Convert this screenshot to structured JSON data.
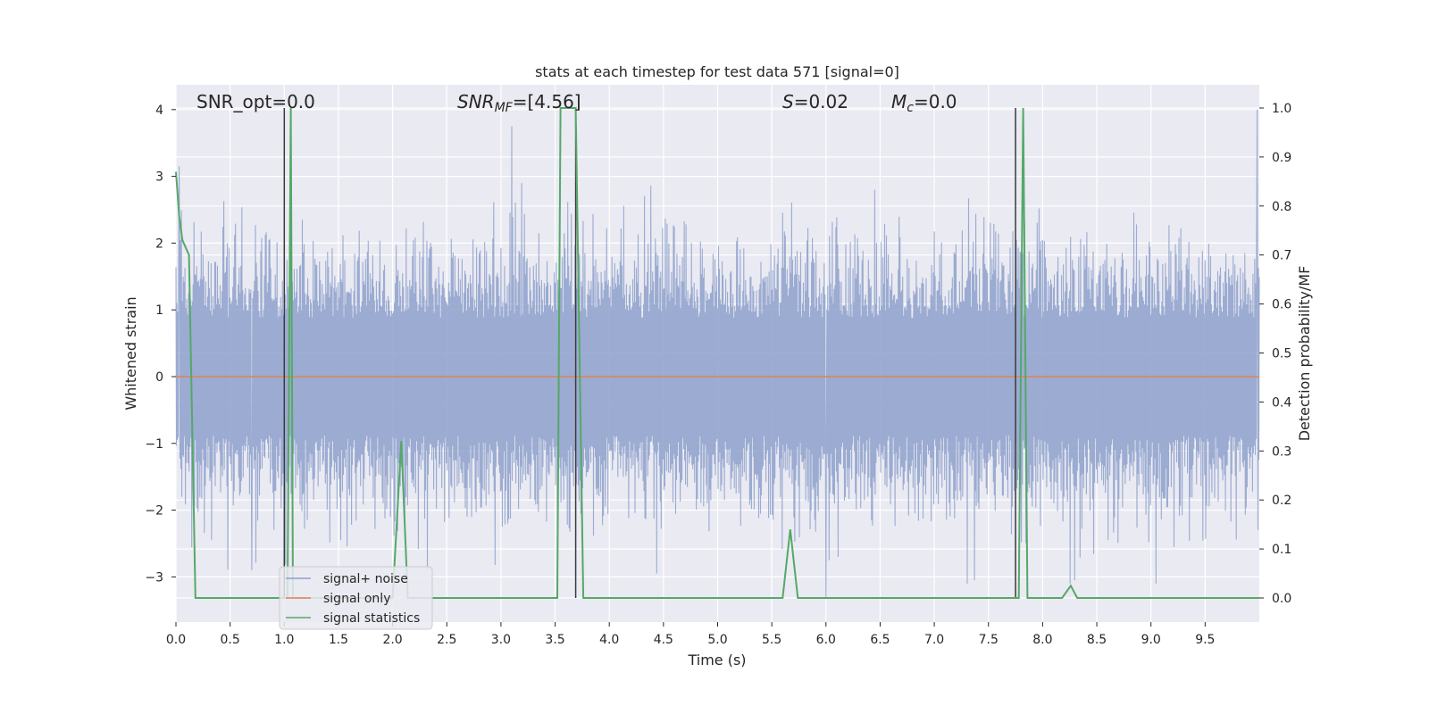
{
  "chart_data": {
    "type": "line",
    "title": "stats at each timestep for test data 571 [signal=0]",
    "xlabel": "Time (s)",
    "ylabel": "Whitened strain",
    "y2label": "Detection probability/MF",
    "xlim": [
      0,
      10
    ],
    "ylim": [
      -3.7,
      4.4
    ],
    "y2lim": [
      -0.047,
      1.047
    ],
    "xticks": [
      "0.0",
      "0.5",
      "1.0",
      "1.5",
      "2.0",
      "2.5",
      "3.0",
      "3.5",
      "4.0",
      "4.5",
      "5.0",
      "5.5",
      "6.0",
      "6.5",
      "7.0",
      "7.5",
      "8.0",
      "8.5",
      "9.0",
      "9.5"
    ],
    "yticks": [
      "4",
      "3",
      "2",
      "1",
      "0",
      "−1",
      "−2",
      "−3"
    ],
    "y2ticks": [
      "1.0",
      "0.9",
      "0.8",
      "0.7",
      "0.6",
      "0.5",
      "0.4",
      "0.3",
      "0.2",
      "0.1",
      "0.0"
    ],
    "grid": true,
    "legend_position": "lower-left",
    "annotations": {
      "snr_opt": "SNR_opt=0.0",
      "snr_mf_name": "SNR",
      "snr_mf_sub": "MF",
      "snr_mf_value": "=[4.56]",
      "s_name": "S",
      "s_value": "=0.02",
      "mc_name": "M",
      "mc_sub": "c",
      "mc_value": "=0.0"
    },
    "series": [
      {
        "name": "signal+ noise",
        "color": "#8da0cb",
        "amplitude_typical": 1.6,
        "notable_peaks": [
          [
            0.03,
            3.15
          ],
          [
            3.1,
            3.75
          ],
          [
            9.98,
            4.0
          ],
          [
            6.0,
            -3.3
          ],
          [
            0.7,
            -2.9
          ]
        ]
      },
      {
        "name": "signal only",
        "color": "#dd8452",
        "x": [
          0,
          10
        ],
        "y": [
          0,
          0
        ]
      },
      {
        "name": "signal statistics",
        "color": "#55a868",
        "axis": "right",
        "x": [
          0.0,
          0.03,
          0.06,
          0.12,
          0.18,
          0.98,
          1.0,
          1.03,
          1.06,
          1.08,
          1.1,
          1.12,
          2.0,
          2.08,
          2.14,
          3.49,
          3.52,
          3.55,
          3.69,
          3.76,
          5.6,
          5.67,
          5.74,
          7.74,
          7.78,
          7.82,
          7.86,
          8.18,
          8.26,
          8.32,
          10.0
        ],
        "y": [
          0.87,
          0.78,
          0.73,
          0.7,
          0.0,
          0.0,
          0.0,
          0.0,
          1.0,
          0.0,
          0.0,
          0.0,
          0.0,
          0.32,
          0.0,
          0.0,
          0.0,
          1.0,
          1.0,
          0.0,
          0.0,
          0.14,
          0.0,
          0.0,
          0.0,
          1.0,
          0.0,
          0.0,
          0.025,
          0.0,
          0.0
        ]
      },
      {
        "name": "markers",
        "color": "#3a3a3a",
        "axis": "right",
        "vlines_x": [
          1.0,
          3.69,
          7.75
        ]
      }
    ]
  }
}
